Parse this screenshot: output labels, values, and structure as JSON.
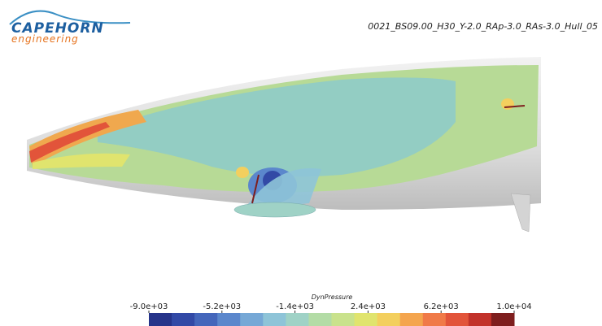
{
  "logo": {
    "line1": "CAPEHORN",
    "line2": "engineering"
  },
  "run_label": "0021_BS09.00_H30_Y-2.0_RAp-3.0_RAs-3.0_Hull_05",
  "colorbar": {
    "title": "DynPressure",
    "range": [
      -9000,
      10000
    ],
    "ticks": [
      {
        "value": -9000,
        "label": "-9.0e+03"
      },
      {
        "value": -5200,
        "label": "-5.2e+03"
      },
      {
        "value": -1400,
        "label": "-1.4e+03"
      },
      {
        "value": 2400,
        "label": "2.4e+03"
      },
      {
        "value": 6200,
        "label": "6.2e+03"
      },
      {
        "value": 10000,
        "label": "1.0e+04"
      }
    ],
    "colors": [
      "#26348a",
      "#3249a6",
      "#4466bb",
      "#5b87cc",
      "#76a8d6",
      "#8ec4d8",
      "#9fd2c6",
      "#b3dca6",
      "#c9e28c",
      "#e0e46e",
      "#f3cf5e",
      "#f4a54e",
      "#f07a48",
      "#e2543a",
      "#c2322a",
      "#7e1e1e"
    ]
  }
}
